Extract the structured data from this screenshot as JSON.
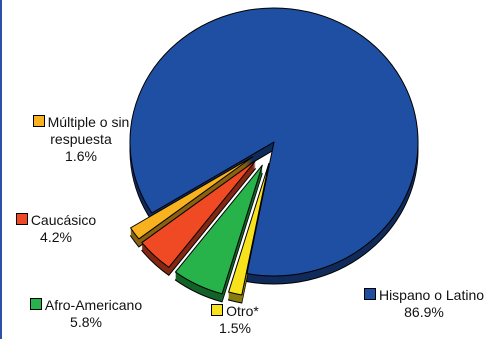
{
  "chart_data": {
    "type": "pie",
    "title": "",
    "exploded": true,
    "three_d": true,
    "slices": [
      {
        "key": "hispano",
        "label": "Hispano o Latino",
        "value_text": "86.9%",
        "value": 86.9,
        "color": "#1f4fa3"
      },
      {
        "key": "otro",
        "label": "Otro*",
        "value_text": "1.5%",
        "value": 1.5,
        "color": "#f7e21b"
      },
      {
        "key": "afro",
        "label": "Afro-Americano",
        "value_text": "5.8%",
        "value": 5.8,
        "color": "#27b24a"
      },
      {
        "key": "caucasico",
        "label": "Caucásico",
        "value_text": "4.2%",
        "value": 4.2,
        "color": "#ef4a23"
      },
      {
        "key": "multiple",
        "label": "Múltiple o sin respuesta",
        "label_lines": [
          "Múltiple o sin",
          "respuesta"
        ],
        "value_text": "1.6%",
        "value": 1.6,
        "color": "#f8b21f"
      }
    ]
  }
}
